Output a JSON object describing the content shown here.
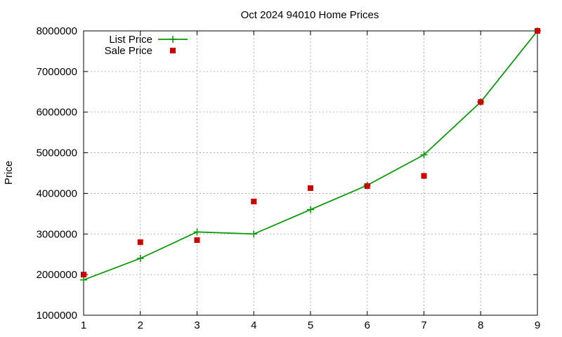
{
  "chart_data": {
    "type": "line",
    "title": "Oct 2024 94010 Home Prices",
    "xlabel": "",
    "ylabel": "Price",
    "xlim": [
      1,
      9
    ],
    "ylim": [
      1000000,
      8000000
    ],
    "x_ticks": [
      "1",
      "2",
      "3",
      "4",
      "5",
      "6",
      "7",
      "8",
      "9"
    ],
    "y_ticks": [
      "1000000",
      "2000000",
      "3000000",
      "4000000",
      "5000000",
      "6000000",
      "7000000",
      "8000000"
    ],
    "grid": true,
    "legend_position": "top-left",
    "x": [
      1,
      2,
      3,
      4,
      5,
      6,
      7,
      8,
      9
    ],
    "series": [
      {
        "name": "List Price",
        "style": "linespoints",
        "marker": "plus",
        "color": "#009900",
        "values": [
          1870000,
          2400000,
          3050000,
          3000000,
          3600000,
          4200000,
          4950000,
          6250000,
          8000000
        ]
      },
      {
        "name": "Sale Price",
        "style": "points",
        "marker": "square",
        "color": "#cc0000",
        "values": [
          2000000,
          2800000,
          2850000,
          3800000,
          4130000,
          4180000,
          4430000,
          6250000,
          8000000
        ]
      }
    ]
  }
}
